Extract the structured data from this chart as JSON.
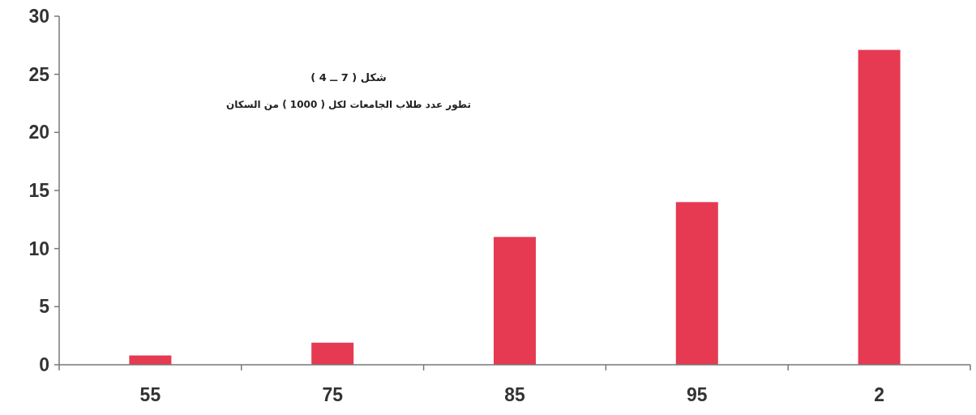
{
  "chart_data": {
    "type": "bar",
    "title": "شكل ( 7 ــ 4 )",
    "subtitle": "تطور عدد طلاب الجامعات لكل ( 1000 ) من السكان",
    "categories": [
      "55",
      "75",
      "85",
      "95",
      "2"
    ],
    "values": [
      0.8,
      1.9,
      11,
      14,
      27.1
    ],
    "color": "#e63a52",
    "ylim": [
      0,
      30
    ],
    "yticks": [
      0,
      5,
      10,
      15,
      20,
      25,
      30
    ],
    "grid": false,
    "legend": false
  }
}
